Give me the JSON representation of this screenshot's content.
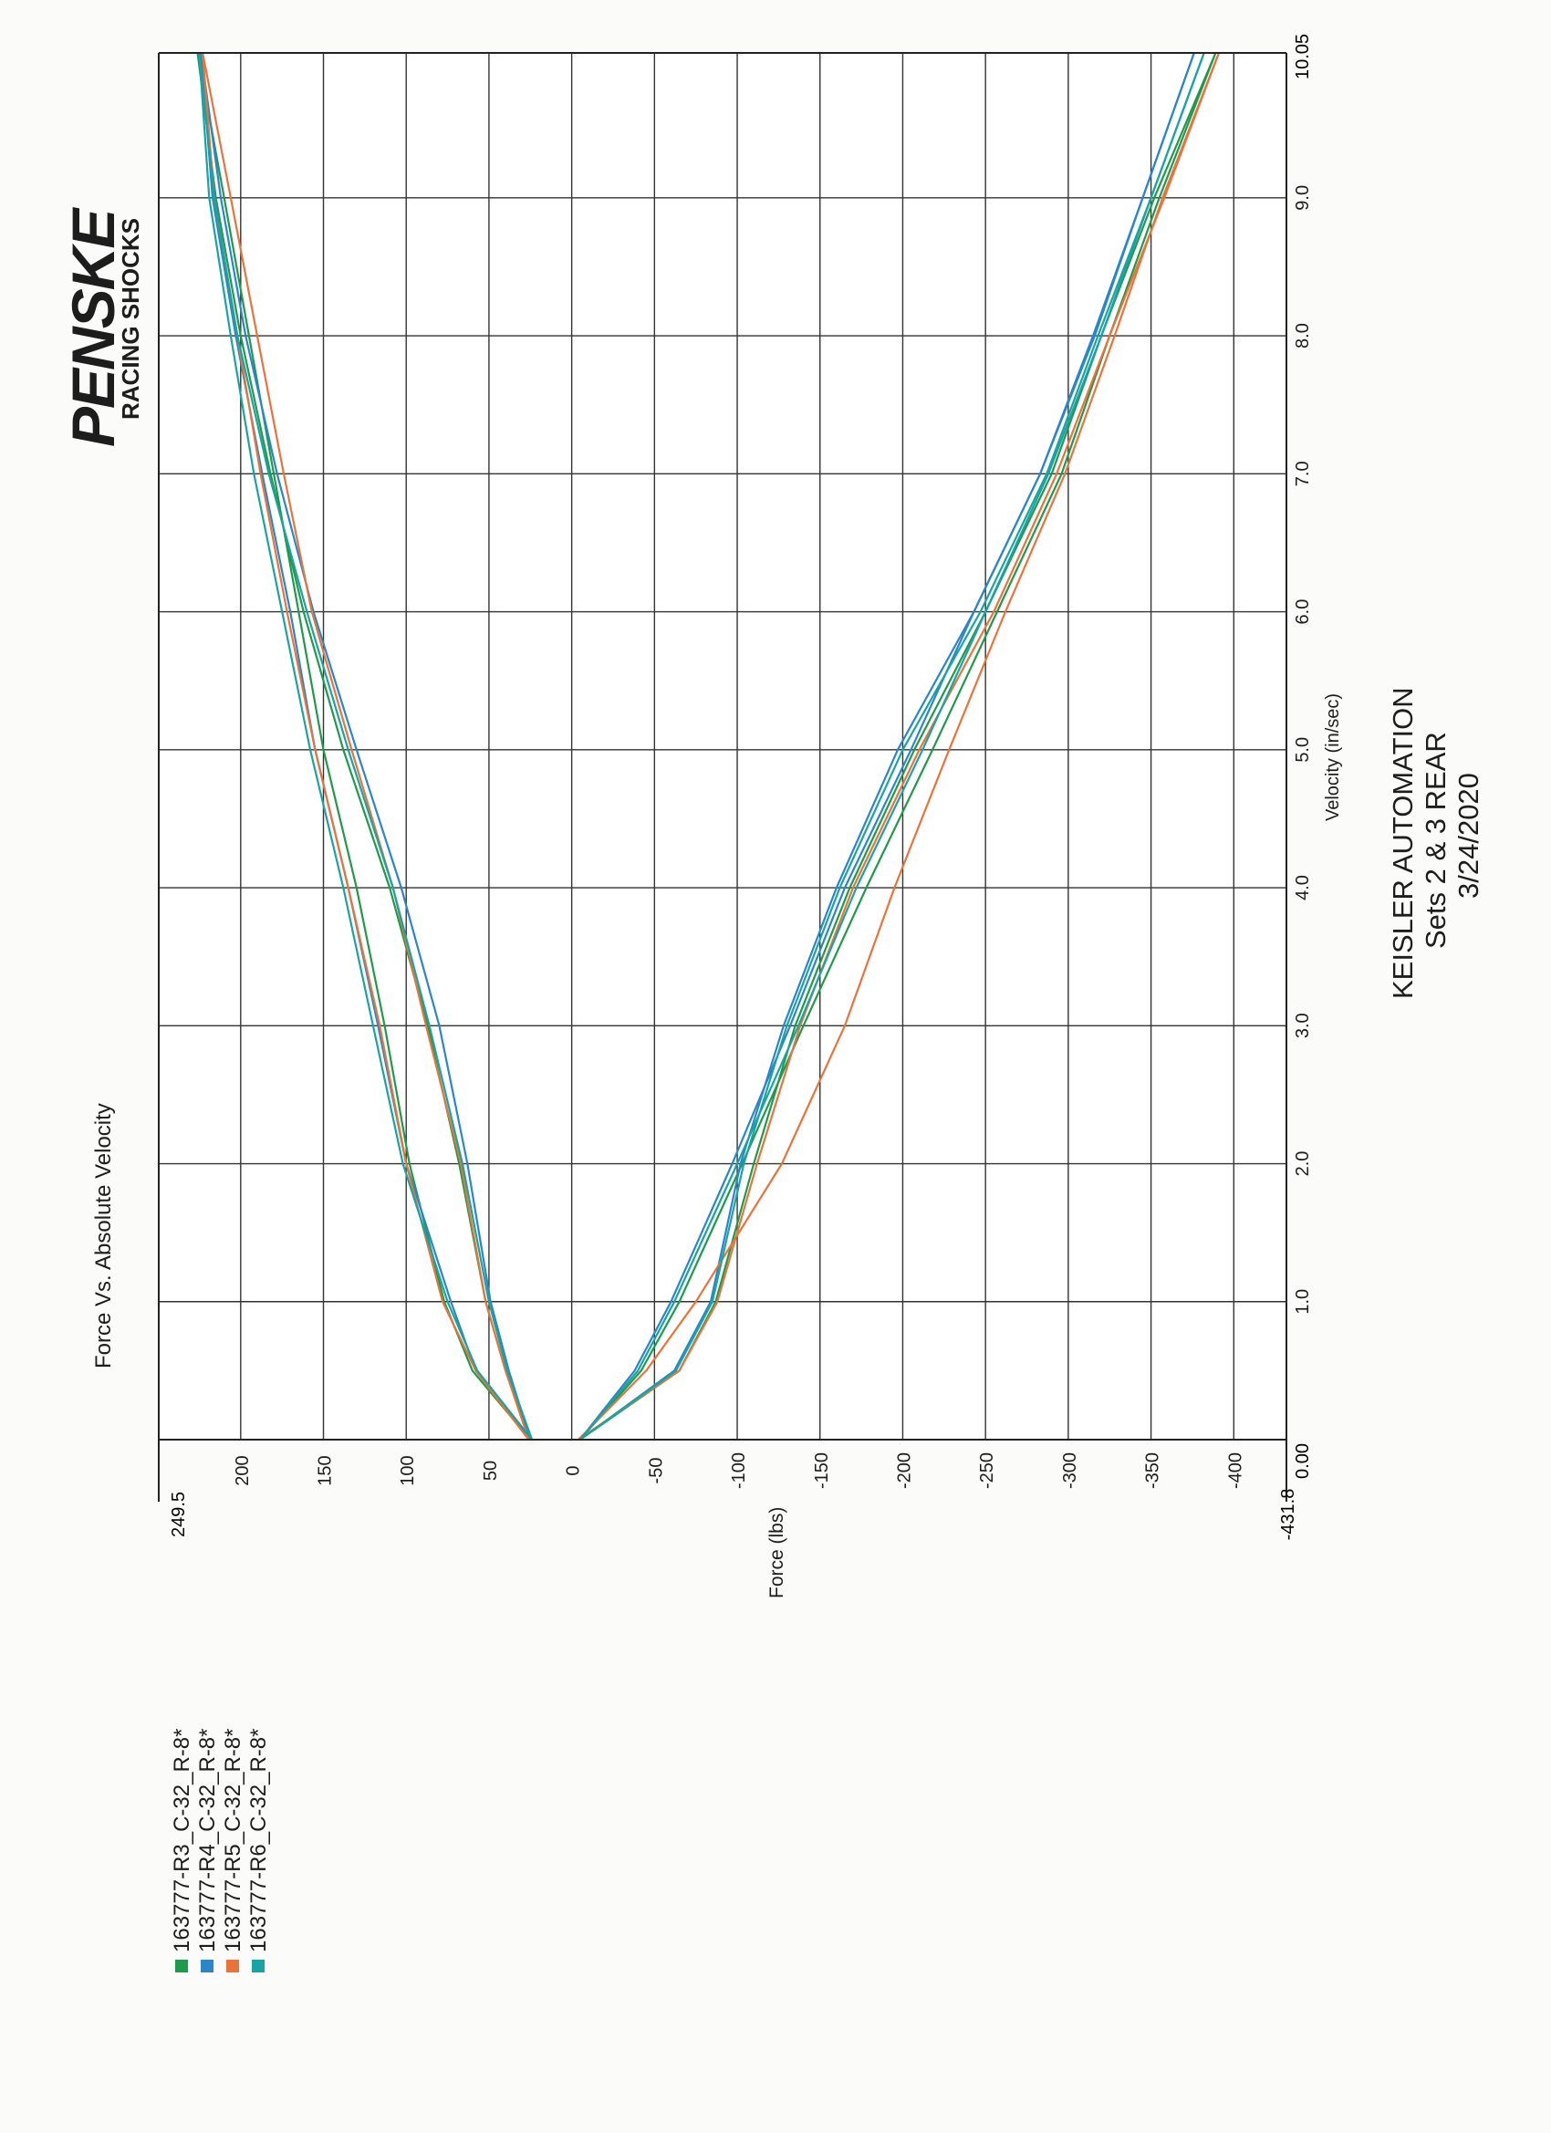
{
  "chart_data": {
    "type": "line",
    "title": "Force Vs. Absolute Velocity",
    "xlabel": "Velocity (in/sec)",
    "ylabel": "Force (lbs)",
    "xlim": [
      0.0,
      10.05
    ],
    "ylim": [
      -431.8,
      249.5
    ],
    "x_range_labels": {
      "min": "0.00",
      "max": "10.05"
    },
    "y_range_labels": {
      "min": "-431.8",
      "max": "249.5"
    },
    "x_ticks": [
      {
        "value": 1.0,
        "label": "1.0"
      },
      {
        "value": 2.0,
        "label": "2.0"
      },
      {
        "value": 3.0,
        "label": "3.0"
      },
      {
        "value": 4.0,
        "label": "4.0"
      },
      {
        "value": 5.0,
        "label": "5.0"
      },
      {
        "value": 6.0,
        "label": "6.0"
      },
      {
        "value": 7.0,
        "label": "7.0"
      },
      {
        "value": 8.0,
        "label": "8.0"
      },
      {
        "value": 9.0,
        "label": "9.0"
      }
    ],
    "y_ticks": [
      {
        "value": 200,
        "label": "200"
      },
      {
        "value": 150,
        "label": "150"
      },
      {
        "value": 100,
        "label": "100"
      },
      {
        "value": 50,
        "label": "50"
      },
      {
        "value": 0,
        "label": "0"
      },
      {
        "value": -50,
        "label": "-50"
      },
      {
        "value": -100,
        "label": "-100"
      },
      {
        "value": -150,
        "label": "-150"
      },
      {
        "value": -200,
        "label": "-200"
      },
      {
        "value": -250,
        "label": "-250"
      },
      {
        "value": -300,
        "label": "-300"
      },
      {
        "value": -350,
        "label": "-350"
      },
      {
        "value": -400,
        "label": "-400"
      }
    ],
    "grid": true,
    "orientation": "rotated 90° counter-clockwise on page",
    "legend_position": "bottom-left",
    "series": [
      {
        "name": "163777-R3_C-32_R-8*",
        "color": "#1f9a4a",
        "rebound": {
          "x": [
            0.0,
            0.5,
            1.0,
            2.0,
            3.0,
            4.0,
            5.0,
            6.0,
            7.0,
            8.0,
            9.0,
            10.05
          ],
          "y": [
            25,
            60,
            77,
            98,
            113,
            130,
            150,
            165,
            180,
            195,
            210,
            226
          ]
        },
        "rebound_return": {
          "x": [
            10.05,
            9.0,
            8.0,
            7.0,
            6.0,
            5.0,
            4.0,
            3.0,
            2.0,
            1.0,
            0.5,
            0.0
          ],
          "y": [
            226,
            215,
            200,
            182,
            162,
            138,
            110,
            87,
            68,
            52,
            40,
            25
          ]
        },
        "compression": {
          "x": [
            0.0,
            0.5,
            1.0,
            2.0,
            3.0,
            4.0,
            5.0,
            6.0,
            7.0,
            8.0,
            9.0,
            10.05
          ],
          "y": [
            -5,
            -42,
            -65,
            -103,
            -140,
            -178,
            -218,
            -257,
            -296,
            -325,
            -355,
            -389
          ]
        },
        "compression_return": {
          "x": [
            10.05,
            9.0,
            8.0,
            7.0,
            6.0,
            5.0,
            4.0,
            3.0,
            2.0,
            1.0,
            0.5,
            0.0
          ],
          "y": [
            -389,
            -352,
            -320,
            -290,
            -250,
            -207,
            -168,
            -135,
            -110,
            -87,
            -65,
            -5
          ]
        }
      },
      {
        "name": "163777-R4_C-32_R-8*",
        "color": "#2a86c8",
        "rebound": {
          "x": [
            0.0,
            0.5,
            1.0,
            2.0,
            3.0,
            4.0,
            5.0,
            6.0,
            7.0,
            8.0,
            9.0,
            10.05
          ],
          "y": [
            25,
            58,
            73,
            100,
            117,
            135,
            155,
            170,
            187,
            203,
            217,
            224
          ]
        },
        "rebound_return": {
          "x": [
            10.05,
            9.0,
            8.0,
            7.0,
            6.0,
            5.0,
            4.0,
            3.0,
            2.0,
            1.0,
            0.5,
            0.0
          ],
          "y": [
            224,
            212,
            197,
            178,
            156,
            130,
            103,
            80,
            63,
            49,
            38,
            25
          ]
        },
        "compression": {
          "x": [
            0.0,
            0.5,
            1.0,
            2.0,
            3.0,
            4.0,
            5.0,
            6.0,
            7.0,
            8.0,
            9.0,
            10.05
          ],
          "y": [
            -5,
            -38,
            -60,
            -97,
            -132,
            -165,
            -205,
            -243,
            -283,
            -315,
            -345,
            -376
          ]
        },
        "compression_return": {
          "x": [
            10.05,
            9.0,
            8.0,
            7.0,
            6.0,
            5.0,
            4.0,
            3.0,
            2.0,
            1.0,
            0.5,
            0.0
          ],
          "y": [
            -376,
            -345,
            -316,
            -283,
            -243,
            -197,
            -160,
            -128,
            -102,
            -84,
            -62,
            -5
          ]
        }
      },
      {
        "name": "163777-R5_C-32_R-8*",
        "color": "#e8743b",
        "rebound": {
          "x": [
            0.0,
            0.5,
            1.0,
            2.0,
            3.0,
            4.0,
            5.0,
            6.0,
            7.0,
            8.0,
            9.0,
            10.05
          ],
          "y": [
            26,
            58,
            78,
            100,
            116,
            135,
            155,
            172,
            188,
            202,
            216,
            223
          ]
        },
        "rebound_return": {
          "x": [
            10.05,
            9.0,
            8.0,
            7.0,
            6.0,
            5.0,
            4.0,
            3.0,
            2.0,
            1.0,
            0.5,
            0.0
          ],
          "y": [
            223,
            206,
            190,
            174,
            157,
            133,
            108,
            88,
            67,
            52,
            40,
            26
          ]
        },
        "compression": {
          "x": [
            0.0,
            0.5,
            1.0,
            2.0,
            3.0,
            4.0,
            5.0,
            6.0,
            7.0,
            8.0,
            9.0,
            10.05
          ],
          "y": [
            -4,
            -45,
            -75,
            -127,
            -165,
            -195,
            -228,
            -262,
            -298,
            -328,
            -357,
            -391
          ]
        },
        "compression_return": {
          "x": [
            10.05,
            9.0,
            8.0,
            7.0,
            6.0,
            5.0,
            4.0,
            3.0,
            2.0,
            1.0,
            0.5,
            0.0
          ],
          "y": [
            -391,
            -358,
            -325,
            -293,
            -255,
            -210,
            -170,
            -138,
            -112,
            -88,
            -65,
            -4
          ]
        }
      },
      {
        "name": "163777-R6_C-32_R-8*",
        "color": "#1aa3a3",
        "rebound": {
          "x": [
            0.0,
            0.5,
            1.0,
            2.0,
            3.0,
            4.0,
            5.0,
            6.0,
            7.0,
            8.0,
            9.0,
            10.05
          ],
          "y": [
            24,
            57,
            75,
            102,
            120,
            138,
            158,
            175,
            192,
            206,
            219,
            225
          ]
        },
        "rebound_return": {
          "x": [
            10.05,
            9.0,
            8.0,
            7.0,
            6.0,
            5.0,
            4.0,
            3.0,
            2.0,
            1.0,
            0.5,
            0.0
          ],
          "y": [
            225,
            216,
            202,
            183,
            160,
            135,
            108,
            86,
            66,
            50,
            39,
            24
          ]
        },
        "compression": {
          "x": [
            0.0,
            0.5,
            1.0,
            2.0,
            3.0,
            4.0,
            5.0,
            6.0,
            7.0,
            8.0,
            9.0,
            10.05
          ],
          "y": [
            -5,
            -40,
            -62,
            -100,
            -137,
            -172,
            -212,
            -250,
            -288,
            -320,
            -350,
            -382
          ]
        },
        "compression_return": {
          "x": [
            10.05,
            9.0,
            8.0,
            7.0,
            6.0,
            5.0,
            4.0,
            3.0,
            2.0,
            1.0,
            0.5,
            0.0
          ],
          "y": [
            -382,
            -350,
            -318,
            -287,
            -247,
            -200,
            -162,
            -130,
            -104,
            -85,
            -63,
            -5
          ]
        }
      }
    ]
  },
  "logo": {
    "brand": "PENSKE",
    "tagline": "RACING SHOCKS"
  },
  "report": {
    "company": "KEISLER AUTOMATION",
    "sets": "Sets 2 & 3 REAR",
    "date": "3/24/2020"
  }
}
